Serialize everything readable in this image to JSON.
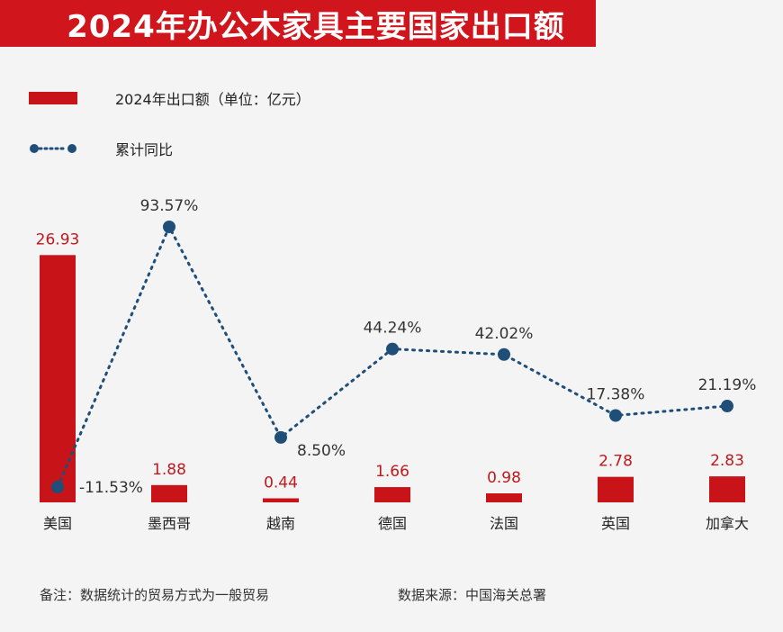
{
  "title": "2024年办公木家具主要国家出口额",
  "legend": {
    "bar_label": "2024年出口额（单位：亿元）",
    "line_label": "累计同比"
  },
  "colors": {
    "title_bg": "#d0161c",
    "bar": "#c81319",
    "line": "#1f4e79",
    "bar_label": "#c0181d"
  },
  "chart_data": {
    "type": "bar",
    "categories": [
      "美国",
      "墨西哥",
      "越南",
      "德国",
      "法国",
      "英国",
      "加拿大"
    ],
    "series": [
      {
        "name": "2024年出口额（单位：亿元）",
        "type": "bar",
        "values": [
          26.93,
          1.88,
          0.44,
          1.66,
          0.98,
          2.78,
          2.83
        ],
        "labels": [
          "26.93",
          "1.88",
          "0.44",
          "1.66",
          "0.98",
          "2.78",
          "2.83"
        ]
      },
      {
        "name": "累计同比",
        "type": "line",
        "values": [
          -11.53,
          93.57,
          8.5,
          44.24,
          42.02,
          17.38,
          21.19
        ],
        "labels": [
          "-11.53%",
          "93.57%",
          "8.50%",
          "44.24%",
          "42.02%",
          "17.38%",
          "21.19%"
        ]
      }
    ]
  },
  "footer": {
    "note": "备注：数据统计的贸易方式为一般贸易",
    "source": "数据来源：中国海关总署"
  }
}
